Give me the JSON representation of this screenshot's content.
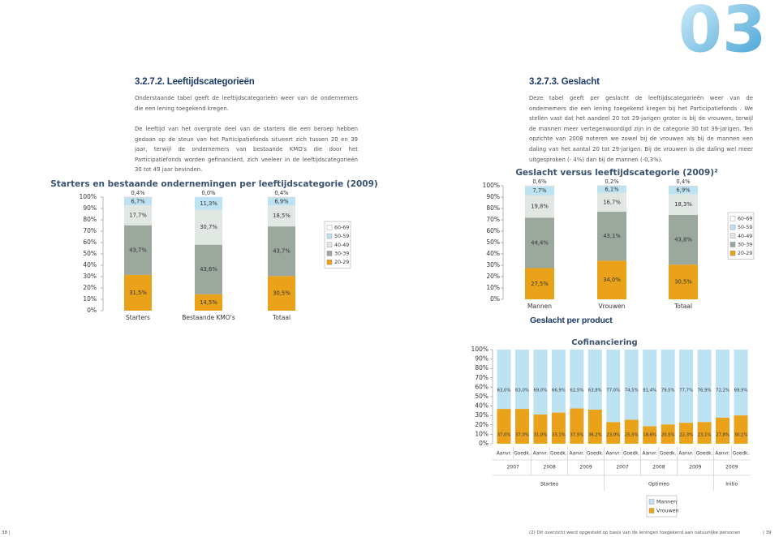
{
  "document": {
    "chapter_number": "03",
    "left": {
      "heading": "3.2.7.2. Leeftijdscategorieën",
      "paragraphs": [
        "Onderstaande tabel geeft de leeftijdscategorieën weer van de ondernemers die een lening toegekend kregen.",
        "De leeftijd van het overgrote deel van de starters die een beroep hebben gedaan op de steun van het Participatiefonds situeert zich tussen 20 en 39 jaar, terwijl de ondernemers van bestaande KMO's die door het Participatiefonds worden gefinancierd, zich veeleer in de leeftijdscategorieën 30 tot 49 jaar bevinden."
      ]
    },
    "right": {
      "heading": "3.2.7.3. Geslacht",
      "paragraphs": [
        "Deze tabel geeft per geslacht de leeftijdscategorieën weer van de ondernemers die een lening toegekend kregen bij het Participatiefonds . We stellen vast dat het aandeel 20 tot 29-jarigen groter is bij de vrouwen, terwijl de mannen meer vertegenwoordigd zijn in de categorie 30 tot 39-jarigen. Ten opzichte van 2008 noteren we zowel bij de vrouwen als bij de mannen een daling van het aantal 20 tot 29-jarigen. Bij de vrouwen is die daling wel meer uitgesproken (- 4%) dan bij de mannen (-0,3%)."
      ],
      "subheading": "Geslacht per product"
    },
    "footer": {
      "left_page": "38 |",
      "footnote": "(2) Dit overzicht werd opgesteld op basis van de leningen toegekend aan natuurlijke personen",
      "right_page": "| 39"
    }
  },
  "chart_data": [
    {
      "type": "stacked_bar",
      "title": "Starters en bestaande ondernemingen per leeftijdscategorie (2009)",
      "categories": [
        "Starters",
        "Bestaande KMO's",
        "Totaal"
      ],
      "series": [
        {
          "name": "20-29",
          "color": "#e9a21a",
          "values": [
            31.5,
            14.5,
            30.5
          ],
          "value_labels": [
            "31,5%",
            "14,5%",
            "30,5%"
          ]
        },
        {
          "name": "30-39",
          "color": "#9ba89d",
          "values": [
            43.7,
            43.6,
            43.7
          ],
          "value_labels": [
            "43,7%",
            "43,6%",
            "43,7%"
          ]
        },
        {
          "name": "40-49",
          "color": "#e1e7e2",
          "values": [
            17.7,
            30.7,
            18.5
          ],
          "value_labels": [
            "17,7%",
            "30,7%",
            "18,5%"
          ]
        },
        {
          "name": "50-59",
          "color": "#bde2f2",
          "values": [
            6.7,
            11.3,
            6.9
          ],
          "value_labels": [
            "6,7%",
            "11,3%",
            "6,9%"
          ]
        },
        {
          "name": "60-69",
          "color": "#ffffff",
          "values": [
            0.4,
            0.0,
            0.4
          ],
          "value_labels": [
            "0,4%",
            "0,0%",
            "0,4%"
          ]
        }
      ],
      "ylim": [
        0,
        100
      ],
      "yticks": [
        {
          "value": 0,
          "label": "0%"
        },
        {
          "value": 10,
          "label": "10%"
        },
        {
          "value": 20,
          "label": "20%"
        },
        {
          "value": 30,
          "label": "30%"
        },
        {
          "value": 40,
          "label": "40%"
        },
        {
          "value": 50,
          "label": "50%"
        },
        {
          "value": 60,
          "label": "60%"
        },
        {
          "value": 70,
          "label": "70%"
        },
        {
          "value": 80,
          "label": "80%"
        },
        {
          "value": 90,
          "label": "90%"
        },
        {
          "value": 100,
          "label": "100%"
        }
      ],
      "legend": "right"
    },
    {
      "type": "stacked_bar",
      "title": "Geslacht versus leeftijdscategorie (2009)²",
      "categories": [
        "Mannen",
        "Vrouwen",
        "Totaal"
      ],
      "series": [
        {
          "name": "20-29",
          "color": "#e9a21a",
          "values": [
            27.5,
            34.0,
            30.5
          ],
          "value_labels": [
            "27,5%",
            "34,0%",
            "30,5%"
          ]
        },
        {
          "name": "30-39",
          "color": "#9ba89d",
          "values": [
            44.4,
            43.1,
            43.8
          ],
          "value_labels": [
            "44,4%",
            "43,1%",
            "43,8%"
          ]
        },
        {
          "name": "40-49",
          "color": "#e1e7e2",
          "values": [
            19.8,
            16.7,
            18.3
          ],
          "value_labels": [
            "19,8%",
            "16,7%",
            "18,3%"
          ]
        },
        {
          "name": "50-59",
          "color": "#bde2f2",
          "values": [
            7.7,
            6.1,
            6.9
          ],
          "value_labels": [
            "7,7%",
            "6,1%",
            "6,9%"
          ]
        },
        {
          "name": "60-69",
          "color": "#ffffff",
          "values": [
            0.6,
            0.2,
            0.4
          ],
          "value_labels": [
            "0,6%",
            "0,2%",
            "0,4%"
          ]
        }
      ],
      "ylim": [
        0,
        100
      ],
      "yticks": [
        {
          "value": 0,
          "label": "0%"
        },
        {
          "value": 10,
          "label": "10%"
        },
        {
          "value": 20,
          "label": "20%"
        },
        {
          "value": 30,
          "label": "30%"
        },
        {
          "value": 40,
          "label": "40%"
        },
        {
          "value": 50,
          "label": "50%"
        },
        {
          "value": 60,
          "label": "60%"
        },
        {
          "value": 70,
          "label": "70%"
        },
        {
          "value": 80,
          "label": "80%"
        },
        {
          "value": 90,
          "label": "90%"
        },
        {
          "value": 100,
          "label": "100%"
        }
      ],
      "legend": "right"
    },
    {
      "type": "stacked_bar",
      "title": "Cofinanciering",
      "categories": [
        "Aanvr.",
        "Goedk.",
        "Aanvr.",
        "Goedk.",
        "Aanvr.",
        "Goedk.",
        "Aanvr.",
        "Goedk.",
        "Aanvr.",
        "Goedk.",
        "Aanvr.",
        "Goedk.",
        "Aanvr.",
        "Goedk."
      ],
      "groups": [
        {
          "program": "Starteo",
          "years": [
            "2007",
            "2008",
            "2009"
          ]
        },
        {
          "program": "Optimeo",
          "years": [
            "2007",
            "2008",
            "2009"
          ]
        },
        {
          "program": "Initio",
          "years": [
            "2009"
          ]
        }
      ],
      "series": [
        {
          "name": "Vrouwen",
          "color": "#e9a21a",
          "values": [
            37.0,
            37.0,
            31.0,
            33.1,
            37.5,
            36.2,
            23.0,
            25.5,
            18.6,
            20.5,
            22.3,
            23.1,
            27.8,
            30.1
          ],
          "value_labels": [
            "37,0%",
            "37,0%",
            "31,0%",
            "33,1%",
            "37,5%",
            "36,2%",
            "23,0%",
            "25,5%",
            "18,6%",
            "20,5%",
            "22,3%",
            "23,1%",
            "27,8%",
            "30,1%"
          ]
        },
        {
          "name": "Mannen",
          "color": "#bde2f2",
          "values": [
            63.0,
            63.0,
            69.0,
            66.9,
            62.5,
            63.8,
            77.0,
            74.5,
            81.4,
            79.5,
            77.7,
            76.9,
            72.2,
            69.9
          ],
          "value_labels": [
            "63,0%",
            "63,0%",
            "69,0%",
            "66,9%",
            "62,5%",
            "63,8%",
            "77,0%",
            "74,5%",
            "81,4%",
            "79,5%",
            "77,7%",
            "76,9%",
            "72,2%",
            "69,9%"
          ]
        }
      ],
      "ylim": [
        0,
        100
      ],
      "yticks": [
        {
          "value": 0,
          "label": "0%"
        },
        {
          "value": 10,
          "label": "10%"
        },
        {
          "value": 20,
          "label": "20%"
        },
        {
          "value": 30,
          "label": "30%"
        },
        {
          "value": 40,
          "label": "40%"
        },
        {
          "value": 50,
          "label": "50%"
        },
        {
          "value": 60,
          "label": "60%"
        },
        {
          "value": 70,
          "label": "70%"
        },
        {
          "value": 80,
          "label": "80%"
        },
        {
          "value": 90,
          "label": "90%"
        },
        {
          "value": 100,
          "label": "100%"
        }
      ],
      "legend": "bottom"
    }
  ]
}
